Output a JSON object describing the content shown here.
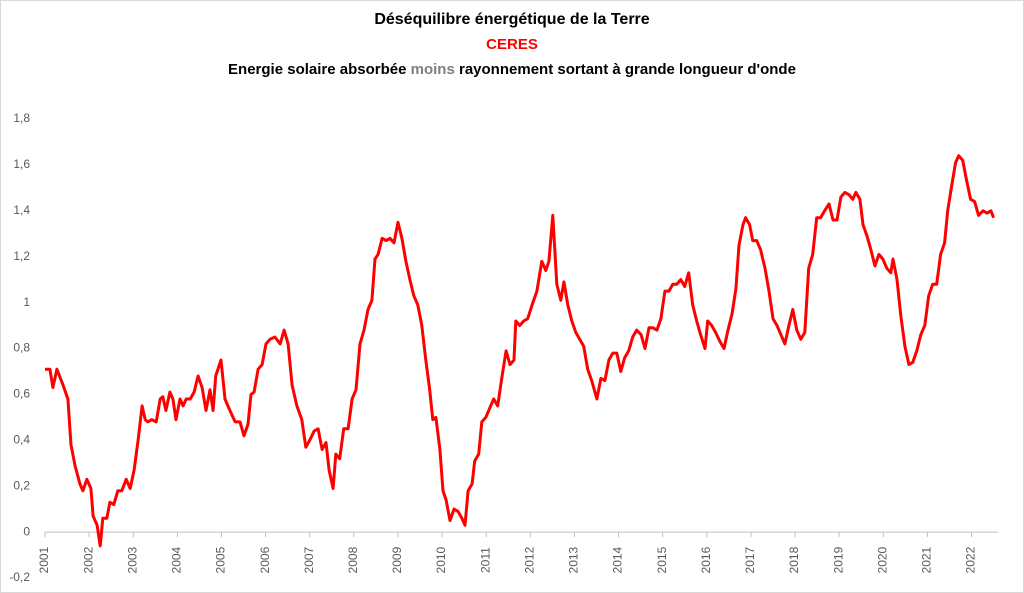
{
  "chart_data": {
    "type": "line",
    "title": "Déséquilibre énergétique de la Terre",
    "subtitle": "CERES",
    "description": [
      "Energie solaire absorbée",
      "moins",
      "rayonnement sortant à grande longueur d'onde"
    ],
    "xlim": [
      2001,
      2022.6
    ],
    "xticks": [
      2001,
      2002,
      2003,
      2004,
      2005,
      2006,
      2007,
      2008,
      2009,
      2010,
      2011,
      2012,
      2013,
      2014,
      2015,
      2016,
      2017,
      2018,
      2019,
      2020,
      2021,
      2022
    ],
    "ylim": [
      -0.2,
      1.8
    ],
    "yticks": [
      {
        "value": -0.2,
        "label": "-0,2"
      },
      0,
      {
        "value": 0.2,
        "label": "0,2"
      },
      {
        "value": 0.4,
        "label": "0,4"
      },
      {
        "value": 0.6,
        "label": "0,6"
      },
      {
        "value": 0.8,
        "label": "0,8"
      },
      1,
      {
        "value": 1.2,
        "label": "1,2"
      },
      {
        "value": 1.4,
        "label": "1,4"
      },
      {
        "value": 1.6,
        "label": "1,6"
      },
      {
        "value": 1.8,
        "label": "1,8"
      }
    ],
    "grid": false,
    "x": [
      2001.0,
      2001.11,
      2001.18,
      2001.27,
      2001.41,
      2001.52,
      2001.59,
      2001.68,
      2001.79,
      2001.86,
      2001.95,
      2002.04,
      2002.09,
      2002.18,
      2002.25,
      2002.31,
      2002.4,
      2002.47,
      2002.56,
      2002.65,
      2002.74,
      2002.84,
      2002.93,
      2003.02,
      2003.11,
      2003.2,
      2003.27,
      2003.33,
      2003.42,
      2003.52,
      2003.61,
      2003.67,
      2003.74,
      2003.83,
      2003.9,
      2003.97,
      2004.06,
      2004.13,
      2004.2,
      2004.29,
      2004.38,
      2004.47,
      2004.56,
      2004.65,
      2004.74,
      2004.81,
      2004.87,
      2004.99,
      2005.08,
      2005.19,
      2005.31,
      2005.42,
      2005.51,
      2005.6,
      2005.67,
      2005.74,
      2005.83,
      2005.92,
      2006.01,
      2006.1,
      2006.21,
      2006.33,
      2006.42,
      2006.51,
      2006.6,
      2006.71,
      2006.82,
      2006.91,
      2007.0,
      2007.1,
      2007.19,
      2007.28,
      2007.37,
      2007.44,
      2007.53,
      2007.59,
      2007.68,
      2007.77,
      2007.87,
      2007.96,
      2008.05,
      2008.14,
      2008.23,
      2008.32,
      2008.41,
      2008.48,
      2008.55,
      2008.64,
      2008.73,
      2008.82,
      2008.91,
      2009.0,
      2009.09,
      2009.18,
      2009.27,
      2009.36,
      2009.45,
      2009.54,
      2009.63,
      2009.72,
      2009.79,
      2009.86,
      2009.95,
      2010.02,
      2010.09,
      2010.18,
      2010.27,
      2010.36,
      2010.45,
      2010.52,
      2010.59,
      2010.68,
      2010.74,
      2010.83,
      2010.9,
      2010.99,
      2011.08,
      2011.17,
      2011.26,
      2011.36,
      2011.45,
      2011.54,
      2011.63,
      2011.67,
      2011.76,
      2011.85,
      2011.94,
      2012.04,
      2012.15,
      2012.26,
      2012.35,
      2012.42,
      2012.51,
      2012.6,
      2012.69,
      2012.76,
      2012.85,
      2012.94,
      2013.03,
      2013.12,
      2013.21,
      2013.3,
      2013.39,
      2013.51,
      2013.6,
      2013.69,
      2013.78,
      2013.87,
      2013.96,
      2014.05,
      2014.14,
      2014.23,
      2014.32,
      2014.41,
      2014.51,
      2014.6,
      2014.69,
      2014.78,
      2014.87,
      2014.96,
      2015.05,
      2015.14,
      2015.23,
      2015.32,
      2015.41,
      2015.5,
      2015.59,
      2015.68,
      2015.77,
      2015.86,
      2015.96,
      2016.02,
      2016.11,
      2016.2,
      2016.3,
      2016.39,
      2016.48,
      2016.57,
      2016.66,
      2016.73,
      2016.82,
      2016.88,
      2016.97,
      2017.04,
      2017.13,
      2017.22,
      2017.32,
      2017.41,
      2017.5,
      2017.59,
      2017.68,
      2017.77,
      2017.86,
      2017.95,
      2018.04,
      2018.13,
      2018.22,
      2018.31,
      2018.4,
      2018.49,
      2018.58,
      2018.67,
      2018.77,
      2018.86,
      2018.95,
      2019.04,
      2019.13,
      2019.22,
      2019.31,
      2019.38,
      2019.47,
      2019.54,
      2019.63,
      2019.72,
      2019.81,
      2019.9,
      2019.99,
      2020.08,
      2020.17,
      2020.22,
      2020.31,
      2020.4,
      2020.49,
      2020.58,
      2020.67,
      2020.76,
      2020.85,
      2020.94,
      2021.03,
      2021.12,
      2021.21,
      2021.3,
      2021.39,
      2021.46,
      2021.55,
      2021.64,
      2021.71,
      2021.8,
      2021.89,
      2021.98,
      2022.07,
      2022.16,
      2022.26,
      2022.35,
      2022.44,
      2022.5
    ],
    "series": [
      {
        "name": "CERES",
        "color": "#ff0000",
        "values": [
          0.71,
          0.71,
          0.63,
          0.71,
          0.64,
          0.58,
          0.38,
          0.29,
          0.21,
          0.18,
          0.23,
          0.19,
          0.07,
          0.03,
          -0.06,
          0.06,
          0.06,
          0.13,
          0.12,
          0.18,
          0.18,
          0.23,
          0.19,
          0.27,
          0.4,
          0.55,
          0.49,
          0.48,
          0.49,
          0.48,
          0.58,
          0.59,
          0.53,
          0.61,
          0.58,
          0.49,
          0.58,
          0.55,
          0.58,
          0.58,
          0.61,
          0.68,
          0.63,
          0.53,
          0.62,
          0.53,
          0.68,
          0.75,
          0.58,
          0.53,
          0.48,
          0.48,
          0.42,
          0.47,
          0.6,
          0.61,
          0.71,
          0.73,
          0.82,
          0.84,
          0.85,
          0.82,
          0.88,
          0.82,
          0.64,
          0.55,
          0.49,
          0.37,
          0.4,
          0.44,
          0.45,
          0.36,
          0.39,
          0.27,
          0.19,
          0.34,
          0.32,
          0.45,
          0.45,
          0.58,
          0.62,
          0.82,
          0.88,
          0.97,
          1.01,
          1.19,
          1.21,
          1.28,
          1.27,
          1.28,
          1.26,
          1.35,
          1.28,
          1.18,
          1.1,
          1.03,
          0.99,
          0.9,
          0.75,
          0.62,
          0.49,
          0.5,
          0.36,
          0.18,
          0.14,
          0.05,
          0.1,
          0.09,
          0.06,
          0.03,
          0.18,
          0.21,
          0.31,
          0.34,
          0.48,
          0.5,
          0.54,
          0.58,
          0.55,
          0.68,
          0.79,
          0.73,
          0.75,
          0.92,
          0.9,
          0.92,
          0.93,
          0.99,
          1.05,
          1.18,
          1.14,
          1.18,
          1.38,
          1.08,
          1.01,
          1.09,
          0.99,
          0.92,
          0.87,
          0.84,
          0.81,
          0.71,
          0.66,
          0.58,
          0.67,
          0.66,
          0.75,
          0.78,
          0.78,
          0.7,
          0.76,
          0.79,
          0.85,
          0.88,
          0.86,
          0.8,
          0.89,
          0.89,
          0.88,
          0.93,
          1.05,
          1.05,
          1.08,
          1.08,
          1.1,
          1.07,
          1.13,
          0.99,
          0.92,
          0.86,
          0.8,
          0.92,
          0.9,
          0.87,
          0.83,
          0.8,
          0.88,
          0.95,
          1.06,
          1.25,
          1.34,
          1.37,
          1.34,
          1.27,
          1.27,
          1.23,
          1.15,
          1.05,
          0.93,
          0.9,
          0.86,
          0.82,
          0.9,
          0.97,
          0.88,
          0.84,
          0.87,
          1.15,
          1.21,
          1.37,
          1.37,
          1.4,
          1.43,
          1.36,
          1.36,
          1.46,
          1.48,
          1.47,
          1.45,
          1.48,
          1.45,
          1.34,
          1.29,
          1.23,
          1.16,
          1.21,
          1.19,
          1.15,
          1.13,
          1.19,
          1.1,
          0.94,
          0.81,
          0.73,
          0.74,
          0.79,
          0.86,
          0.9,
          1.03,
          1.08,
          1.08,
          1.21,
          1.26,
          1.4,
          1.51,
          1.61,
          1.64,
          1.62,
          1.53,
          1.45,
          1.44,
          1.38,
          1.4,
          1.39,
          1.4,
          1.37
        ]
      }
    ]
  }
}
